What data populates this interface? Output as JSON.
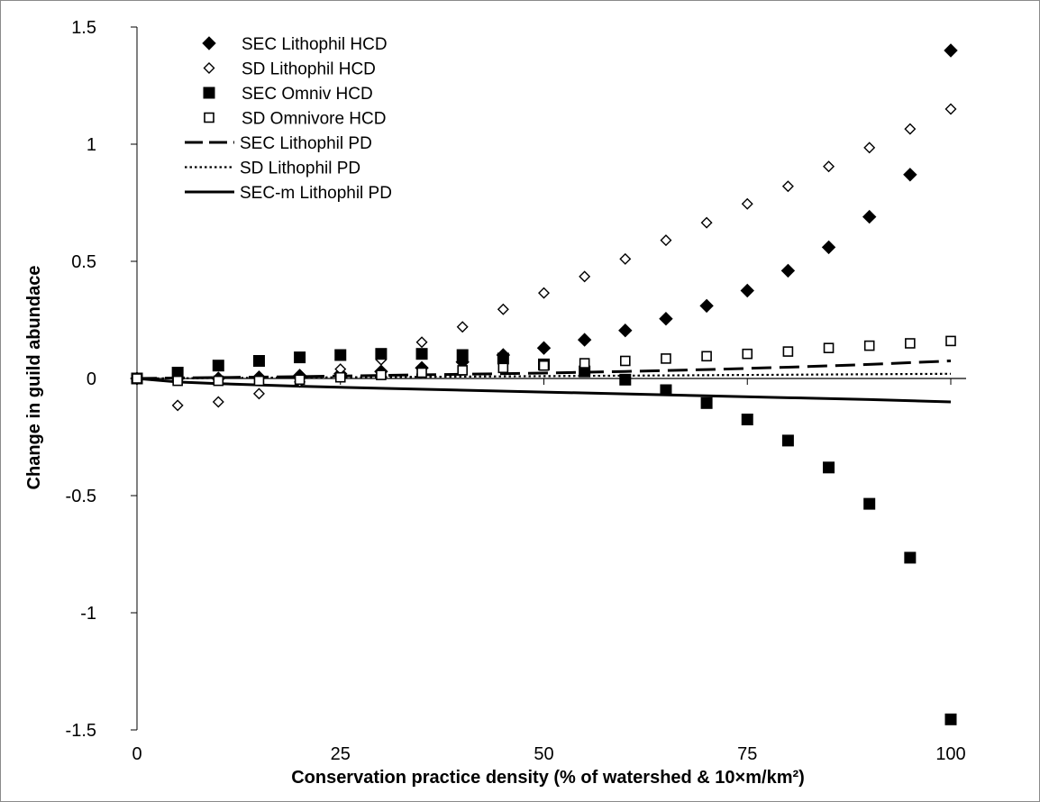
{
  "chart_data": {
    "type": "scatter",
    "title": "",
    "xlabel": "Conservation practice density (% of watershed & 10×m/km²)",
    "ylabel": "Change in guild abundace",
    "xlim": [
      0,
      100
    ],
    "ylim": [
      -1.5,
      1.5
    ],
    "xticks": [
      "0",
      "25",
      "50",
      "75",
      "100"
    ],
    "yticks": [
      "1.5",
      "1",
      "0.5",
      "0",
      "-0.5",
      "-1",
      "-1.5"
    ],
    "grid": false,
    "legend_position": "top-left",
    "series": [
      {
        "name": "SEC Lithophil HCD",
        "kind": "marker",
        "marker": "diamond-filled",
        "x": [
          0,
          5,
          10,
          15,
          20,
          25,
          30,
          35,
          40,
          45,
          50,
          55,
          60,
          65,
          70,
          75,
          80,
          85,
          90,
          95,
          100
        ],
        "y": [
          0,
          0.0,
          0.0,
          0.005,
          0.012,
          0.02,
          0.03,
          0.045,
          0.07,
          0.1,
          0.13,
          0.165,
          0.205,
          0.255,
          0.31,
          0.375,
          0.46,
          0.56,
          0.69,
          0.87,
          1.4
        ]
      },
      {
        "name": "SD Lithophil HCD",
        "kind": "marker",
        "marker": "diamond-open",
        "x": [
          0,
          5,
          10,
          15,
          20,
          25,
          30,
          35,
          40,
          45,
          50,
          55,
          60,
          65,
          70,
          75,
          80,
          85,
          90,
          95,
          100
        ],
        "y": [
          0,
          -0.115,
          -0.1,
          -0.065,
          -0.015,
          0.04,
          0.08,
          0.155,
          0.22,
          0.295,
          0.365,
          0.435,
          0.51,
          0.59,
          0.665,
          0.745,
          0.82,
          0.905,
          0.985,
          1.065,
          1.15
        ]
      },
      {
        "name": "SEC Omniv HCD",
        "kind": "marker",
        "marker": "square-filled",
        "x": [
          0,
          5,
          10,
          15,
          20,
          25,
          30,
          35,
          40,
          45,
          50,
          55,
          60,
          65,
          70,
          75,
          80,
          85,
          90,
          95,
          100
        ],
        "y": [
          0,
          0.025,
          0.055,
          0.075,
          0.09,
          0.1,
          0.105,
          0.105,
          0.1,
          0.085,
          0.06,
          0.03,
          -0.005,
          -0.05,
          -0.105,
          -0.175,
          -0.265,
          -0.38,
          -0.535,
          -0.765,
          -1.455
        ]
      },
      {
        "name": "SD Omnivore HCD",
        "kind": "marker",
        "marker": "square-open",
        "x": [
          0,
          5,
          10,
          15,
          20,
          25,
          30,
          35,
          40,
          45,
          50,
          55,
          60,
          65,
          70,
          75,
          80,
          85,
          90,
          95,
          100
        ],
        "y": [
          0,
          -0.01,
          -0.01,
          -0.01,
          -0.005,
          0.005,
          0.015,
          0.025,
          0.035,
          0.045,
          0.055,
          0.065,
          0.075,
          0.085,
          0.095,
          0.105,
          0.115,
          0.13,
          0.14,
          0.15,
          0.16
        ]
      },
      {
        "name": "SEC Lithophil PD",
        "kind": "line",
        "dash": "long-dash",
        "x": [
          0,
          10,
          20,
          30,
          40,
          50,
          60,
          70,
          80,
          90,
          100
        ],
        "y": [
          0,
          0.004,
          0.008,
          0.013,
          0.018,
          0.023,
          0.03,
          0.038,
          0.048,
          0.06,
          0.075
        ]
      },
      {
        "name": "SD Lithophil PD",
        "kind": "line",
        "dash": "dotted",
        "x": [
          0,
          10,
          20,
          30,
          40,
          50,
          60,
          70,
          80,
          90,
          100
        ],
        "y": [
          0,
          0.002,
          0.004,
          0.006,
          0.008,
          0.01,
          0.012,
          0.014,
          0.016,
          0.018,
          0.02
        ]
      },
      {
        "name": "SEC-m Lithophil PD",
        "kind": "line",
        "dash": "solid",
        "x": [
          0,
          5,
          10,
          20,
          30,
          40,
          50,
          60,
          70,
          80,
          90,
          100
        ],
        "y": [
          0,
          -0.015,
          -0.022,
          -0.033,
          -0.042,
          -0.05,
          -0.058,
          -0.066,
          -0.074,
          -0.082,
          -0.09,
          -0.1
        ]
      }
    ]
  }
}
